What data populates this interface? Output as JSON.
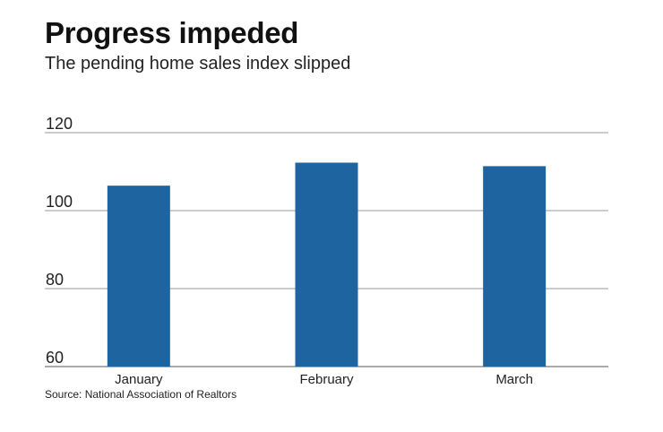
{
  "chart_data": {
    "type": "bar",
    "title": "Progress impeded",
    "subtitle": "The pending home sales index slipped",
    "categories": [
      "January",
      "February",
      "March"
    ],
    "values": [
      106.4,
      112.3,
      111.4
    ],
    "ylim": [
      60,
      120
    ],
    "yticks": [
      60,
      80,
      100,
      120
    ],
    "xlabel": "",
    "ylabel": "",
    "grid": true,
    "bar_color": "#1d64a0",
    "source": "Source: National Association of Realtors"
  }
}
